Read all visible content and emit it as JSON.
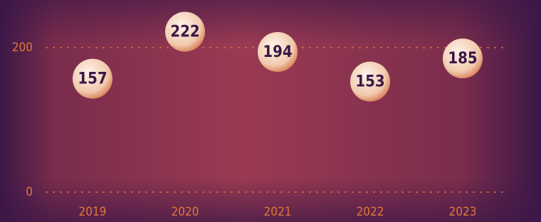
{
  "chart_data": {
    "type": "bubble-dot",
    "categories": [
      "2019",
      "2020",
      "2021",
      "2022",
      "2023"
    ],
    "values": [
      157,
      222,
      194,
      153,
      185
    ],
    "color": "#f4dccb",
    "ylim": [
      0,
      260
    ],
    "yticks": [
      0,
      200
    ],
    "grid": true
  }
}
